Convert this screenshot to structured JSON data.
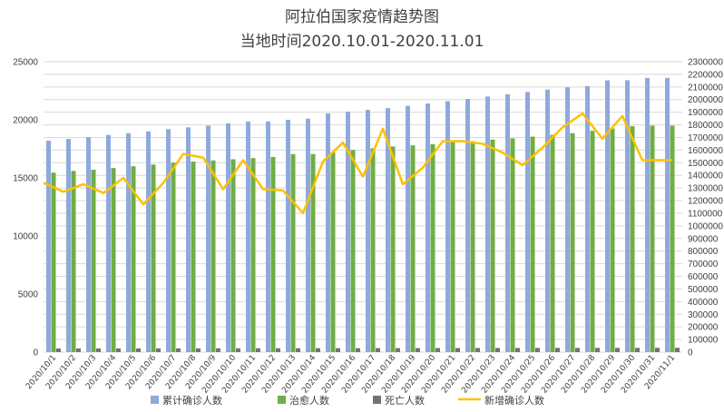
{
  "colors": {
    "cumulative": "#8EA9DB",
    "recovered": "#70AD47",
    "deaths": "#767171",
    "new_cases": "#FFC000",
    "grid": "#D9D9D9",
    "text": "#404040"
  },
  "chart_data": {
    "type": "bar",
    "title": "阿拉伯国家疫情趋势图",
    "subtitle": "当地时间2020.10.01-2020.11.01",
    "categories": [
      "2020/10/1",
      "2020/10/2",
      "2020/10/3",
      "2020/10/4",
      "2020/10/5",
      "2020/10/6",
      "2020/10/7",
      "2020/10/8",
      "2020/10/9",
      "2020/10/10",
      "2020/10/11",
      "2020/10/12",
      "2020/10/13",
      "2020/10/14",
      "2020/10/15",
      "2020/10/16",
      "2020/10/17",
      "2020/10/18",
      "2020/10/19",
      "2020/10/20",
      "2020/10/21",
      "2020/10/22",
      "2020/10/23",
      "2020/10/24",
      "2020/10/25",
      "2020/10/26",
      "2020/10/27",
      "2020/10/28",
      "2020/10/29",
      "2020/10/30",
      "2020/10/31",
      "2020/11/1"
    ],
    "y_left": {
      "min": 0,
      "max": 25000,
      "step": 5000,
      "ticks": [
        "0",
        "5000",
        "10000",
        "15000",
        "20000",
        "25000"
      ]
    },
    "y_right": {
      "min": 0,
      "max": 2300000,
      "step": 100000,
      "ticks": [
        "0",
        "100000",
        "200000",
        "300000",
        "400000",
        "500000",
        "600000",
        "700000",
        "800000",
        "900000",
        "1000000",
        "1100000",
        "1200000",
        "1300000",
        "1400000",
        "1500000",
        "1600000",
        "1700000",
        "1800000",
        "1900000",
        "2000000",
        "2100000",
        "2200000",
        "2300000"
      ]
    },
    "grid": true,
    "legend_position": "bottom",
    "series": [
      {
        "name": "累计确诊人数",
        "kind": "bar",
        "axis": "left",
        "color": "#8EA9DB",
        "values": [
          18200,
          18350,
          18500,
          18700,
          18850,
          19000,
          19200,
          19350,
          19500,
          19700,
          19850,
          19850,
          20000,
          20100,
          20550,
          20700,
          20850,
          21000,
          21200,
          21400,
          21600,
          21800,
          22000,
          22200,
          22400,
          22600,
          22800,
          22900,
          23400,
          23400,
          23600,
          23600
        ]
      },
      {
        "name": "治愈人数",
        "kind": "bar",
        "axis": "left",
        "color": "#70AD47",
        "values": [
          15450,
          15600,
          15700,
          15850,
          16000,
          16150,
          16300,
          16400,
          16500,
          16600,
          16700,
          16800,
          17050,
          17050,
          17200,
          17400,
          17550,
          17700,
          17800,
          17900,
          18050,
          18150,
          18300,
          18400,
          18550,
          18700,
          18850,
          19050,
          19250,
          19450,
          19500,
          19500
        ]
      },
      {
        "name": "死亡人数",
        "kind": "bar",
        "axis": "left",
        "color": "#767171",
        "values": [
          310,
          312,
          314,
          316,
          318,
          320,
          322,
          324,
          326,
          328,
          330,
          332,
          334,
          336,
          338,
          340,
          342,
          344,
          346,
          348,
          350,
          352,
          354,
          356,
          358,
          360,
          362,
          364,
          366,
          368,
          370,
          372
        ]
      },
      {
        "name": "新增确诊人数",
        "kind": "line",
        "axis": "right",
        "color": "#FFC000",
        "values": [
          1340000,
          1270000,
          1330000,
          1260000,
          1380000,
          1170000,
          1340000,
          1570000,
          1540000,
          1290000,
          1520000,
          1290000,
          1280000,
          1100000,
          1510000,
          1660000,
          1390000,
          1770000,
          1330000,
          1460000,
          1670000,
          1670000,
          1650000,
          1580000,
          1480000,
          1620000,
          1780000,
          1890000,
          1690000,
          1870000,
          1520000,
          1520000
        ]
      }
    ]
  }
}
